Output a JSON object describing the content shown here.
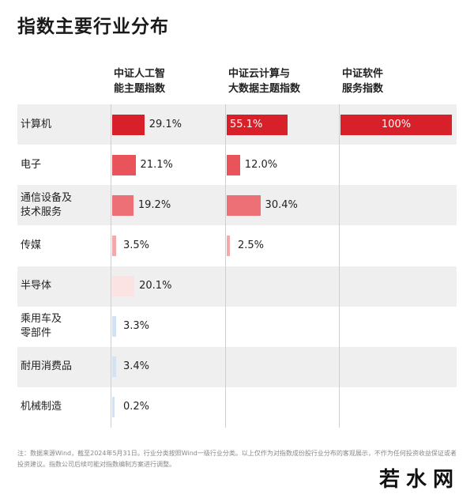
{
  "title": "指数主要行业分布",
  "columns": [
    {
      "line1": "中证人工智",
      "line2": "能主题指数"
    },
    {
      "line1": "中证云计算与",
      "line2": "大数据主题指数"
    },
    {
      "line1": "中证软件",
      "line2": "服务指数"
    }
  ],
  "colors": {
    "dark_red": "#d7202a",
    "mid_red": "#e8545a",
    "pink": "#f2a9ab",
    "light_pink": "#fbe3e3",
    "light_blue": "#d4e3f2",
    "row_alt": "#efefef"
  },
  "chart_data": {
    "type": "bar",
    "categories": [
      "计算机",
      "电子",
      "通信设备及\n技术服务",
      "传媒",
      "半导体",
      "乘用车及\n零部件",
      "耐用消费品",
      "机械制造"
    ],
    "series": [
      {
        "name": "中证人工智能主题指数",
        "values": [
          29.1,
          21.1,
          19.2,
          3.5,
          20.1,
          3.3,
          3.4,
          0.2
        ]
      },
      {
        "name": "中证云计算与大数据主题指数",
        "values": [
          55.1,
          12.0,
          30.4,
          2.5,
          null,
          null,
          null,
          null
        ]
      },
      {
        "name": "中证软件服务指数",
        "values": [
          100,
          null,
          null,
          null,
          null,
          null,
          null,
          null
        ]
      }
    ],
    "labels": [
      [
        "29.1%",
        "21.1%",
        "19.2%",
        "3.5%",
        "20.1%",
        "3.3%",
        "3.4%",
        "0.2%"
      ],
      [
        "55.1%",
        "12.0%",
        "30.4%",
        "2.5%",
        "",
        "",
        "",
        ""
      ],
      [
        "100%",
        "",
        "",
        "",
        "",
        "",
        "",
        ""
      ]
    ],
    "bar_colors": [
      [
        "#d7202a",
        "#e8545a",
        "#ec7075",
        "#f2a9ab",
        "#fbe3e3",
        "#d4e3f2",
        "#d4e3f2",
        "#d4e3f2"
      ],
      [
        "#d7202a",
        "#e8545a",
        "#ec7075",
        "#f2a9ab",
        "",
        "",
        "",
        ""
      ],
      [
        "#d7202a",
        "",
        "",
        "",
        "",
        "",
        "",
        ""
      ]
    ],
    "ylim": [
      0,
      100
    ]
  },
  "footnote": "注：数据来源Wind，截至2024年5月31日。行业分类按照Wind一级行业分类。以上仅作为对指数成份股行业分布的客观展示，不作为任何投资收益保证或者投资建议。指数公司后续可能对指数编制方案进行调整。",
  "watermark": "若水网"
}
